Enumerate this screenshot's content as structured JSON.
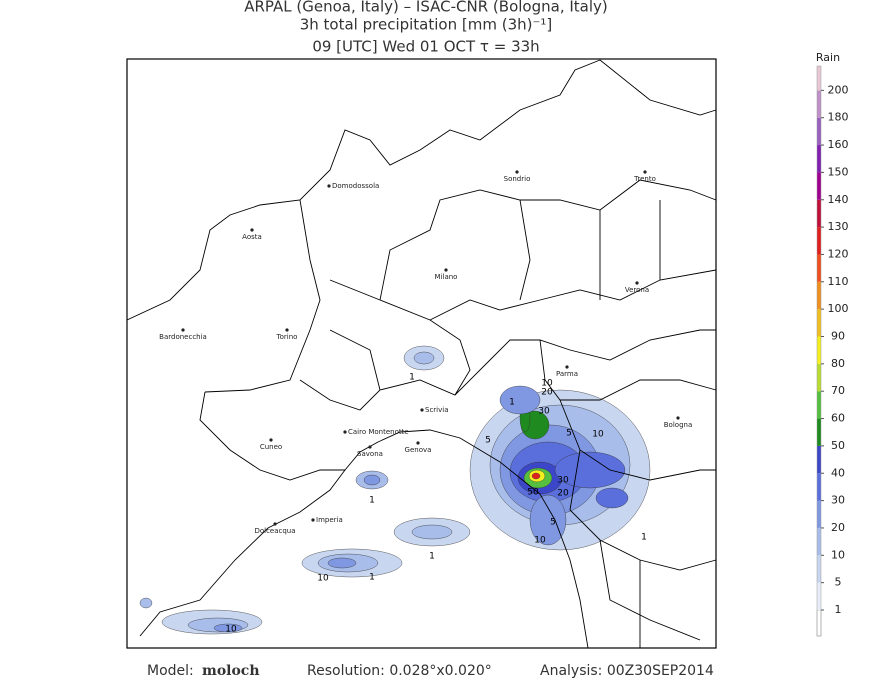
{
  "header": {
    "line1": "ARPAL (Genoa, Italy)  –  ISAC-CNR (Bologna, Italy)",
    "line2": "3h total precipitation [mm (3h)⁻¹]",
    "line3": "09 [UTC] Wed 01 OCT  τ = 33h"
  },
  "map": {
    "cities": [
      "Domodossola",
      "Sondrio",
      "Trento",
      "Aosta",
      "Milano",
      "Verona",
      "Bardonecchia",
      "Torino",
      "Parma",
      "Bologna",
      "Cuneo",
      "Cairo Montenotte",
      "Savona",
      "Genova",
      "Imperia",
      "Dolceacqua",
      "Scrivia"
    ],
    "contour_labels": [
      1,
      1,
      10,
      20,
      30,
      5,
      10,
      5,
      30,
      20,
      50,
      5,
      10,
      1,
      1,
      1,
      10,
      1,
      10
    ]
  },
  "colorbar": {
    "title": "Rain",
    "levels": [
      1,
      5,
      10,
      20,
      30,
      40,
      50,
      60,
      70,
      80,
      90,
      100,
      110,
      120,
      130,
      140,
      150,
      160,
      180,
      200
    ],
    "colors": [
      "#ffffff",
      "#e8eef8",
      "#c8d6f0",
      "#a8bde9",
      "#8097e2",
      "#5a6fdc",
      "#3c46c8",
      "#1f8a1f",
      "#55c040",
      "#b8dc30",
      "#f4f020",
      "#f0c020",
      "#f09020",
      "#f05020",
      "#e02020",
      "#c0103a",
      "#a00090",
      "#8020b0",
      "#9a60c0",
      "#c090c8",
      "#e8c8d4"
    ]
  },
  "footer": {
    "model_label": "Model:",
    "model": "moloch",
    "resolution": "Resolution: 0.028°x0.020°",
    "analysis": "Analysis: 00Z30SEP2014"
  }
}
